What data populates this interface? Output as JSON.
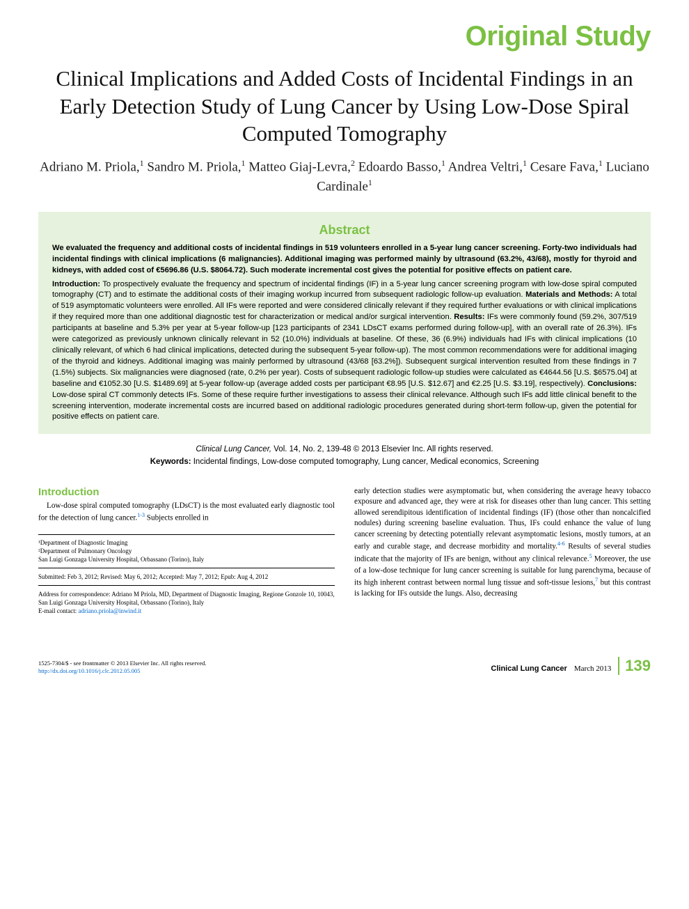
{
  "colors": {
    "accent_green": "#7bc043",
    "abstract_bg": "#e6f2de",
    "link_blue": "#0066cc",
    "text_black": "#000000",
    "background": "#ffffff"
  },
  "typography": {
    "category_fontsize": 40,
    "title_fontsize": 31,
    "authors_fontsize": 19,
    "abstract_heading_fontsize": 18,
    "abstract_body_fontsize": 11.2,
    "section_heading_fontsize": 15,
    "body_fontsize": 11.2,
    "affil_fontsize": 9,
    "footer_fontsize": 8.5,
    "page_number_fontsize": 22
  },
  "category": "Original Study",
  "title": "Clinical Implications and Added Costs of Incidental Findings in an Early Detection Study of Lung Cancer by Using Low-Dose Spiral Computed Tomography",
  "authors_html": "Adriano M. Priola,<sup>1</sup> Sandro M. Priola,<sup>1</sup> Matteo Giaj-Levra,<sup>2</sup> Edoardo Basso,<sup>1</sup> Andrea Veltri,<sup>1</sup> Cesare Fava,<sup>1</sup> Luciano Cardinale<sup>1</sup>",
  "abstract": {
    "heading": "Abstract",
    "lead": "We evaluated the frequency and additional costs of incidental findings in 519 volunteers enrolled in a 5-year lung cancer screening. Forty-two individuals had incidental findings with clinical implications (6 malignancies). Additional imaging was performed mainly by ultrasound (63.2%, 43/68), mostly for thyroid and kidneys, with added cost of €5696.86 (U.S. $8064.72). Such moderate incremental cost gives the potential for positive effects on patient care.",
    "body_html": "<b>Introduction:</b> To prospectively evaluate the frequency and spectrum of incidental findings (IF) in a 5-year lung cancer screening program with low-dose spiral computed tomography (CT) and to estimate the additional costs of their imaging workup incurred from subsequent radiologic follow-up evaluation. <b>Materials and Methods:</b> A total of 519 asymptomatic volunteers were enrolled. All IFs were reported and were considered clinically relevant if they required further evaluations or with clinical implications if they required more than one additional diagnostic test for characterization or medical and/or surgical intervention. <b>Results:</b> IFs were commonly found (59.2%, 307/519 participants at baseline and 5.3% per year at 5-year follow-up [123 participants of 2341 LDsCT exams performed during follow-up], with an overall rate of 26.3%). IFs were categorized as previously unknown clinically relevant in 52 (10.0%) individuals at baseline. Of these, 36 (6.9%) individuals had IFs with clinical implications (10 clinically relevant, of which 6 had clinical implications, detected during the subsequent 5-year follow-up). The most common recommendations were for additional imaging of the thyroid and kidneys. Additional imaging was mainly performed by ultrasound (43/68 [63.2%]). Subsequent surgical intervention resulted from these findings in 7 (1.5%) subjects. Six malignancies were diagnosed (rate, 0.2% per year). Costs of subsequent radiologic follow-up studies were calculated as €4644.56 [U.S. $6575.04] at baseline and €1052.30 [U.S. $1489.69] at 5-year follow-up (average added costs per participant €8.95 [U.S. $12.67] and €2.25 [U.S. $3.19], respectively). <b>Conclusions:</b> Low-dose spiral CT commonly detects IFs. Some of these require further investigations to assess their clinical relevance. Although such IFs add little clinical benefit to the screening intervention, moderate incremental costs are incurred based on additional radiologic procedures generated during short-term follow-up, given the potential for positive effects on patient care."
  },
  "citation": {
    "journal": "Clinical Lung Cancer,",
    "vol_info": " Vol. 14, No. 2, 139-48 © 2013 Elsevier Inc. All rights reserved.",
    "keywords_label": "Keywords:",
    "keywords": " Incidental findings, Low-dose computed tomography, Lung cancer, Medical economics, Screening"
  },
  "introduction": {
    "heading": "Introduction",
    "left_para_html": "Low-dose spiral computed tomography (LDsCT) is the most evaluated early diagnostic tool for the detection of lung cancer.<sup>1-3</sup> Subjects enrolled in",
    "right_para_html": "early detection studies were asymptomatic but, when considering the average heavy tobacco exposure and advanced age, they were at risk for diseases other than lung cancer. This setting allowed serendipitous identification of incidental findings (IF) (those other than noncalcified nodules) during screening baseline evaluation. Thus, IFs could enhance the value of lung cancer screening by detecting potentially relevant asymptomatic lesions, mostly tumors, at an early and curable stage, and decrease morbidity and mortality.<sup>4-6</sup> Results of several studies indicate that the majority of IFs are benign, without any clinical relevance.<sup>5</sup> Moreover, the use of a low-dose technique for lung cancer screening is suitable for lung parenchyma, because of its high inherent contrast between normal lung tissue and soft-tissue lesions,<sup>7</sup> but this contrast is lacking for IFs outside the lungs. Also, decreasing"
  },
  "affiliations": {
    "dept1": "¹Department of Diagnostic Imaging",
    "dept2": "²Department of Pulmonary Oncology",
    "hospital": "San Luigi Gonzaga University Hospital, Orbassano (Torino), Italy",
    "dates": "Submitted: Feb 3, 2012; Revised: May 6, 2012; Accepted: May 7, 2012; Epub: Aug 4, 2012",
    "correspondence": "Address for correspondence: Adriano M Priola, MD, Department of Diagnostic Imaging, Regione Gonzole 10, 10043, San Luigi Gonzaga University Hospital, Orbassano (Torino), Italy",
    "email_label": "E-mail contact: ",
    "email": "adriano.priola@inwind.it"
  },
  "footer": {
    "copyright": "1525-7304/$ - see frontmatter © 2013 Elsevier Inc. All rights reserved.",
    "doi": "http://dx.doi.org/10.1016/j.clc.2012.05.005",
    "journal_name": "Clinical Lung Cancer",
    "issue_date": "March 2013",
    "page_number": "139"
  }
}
